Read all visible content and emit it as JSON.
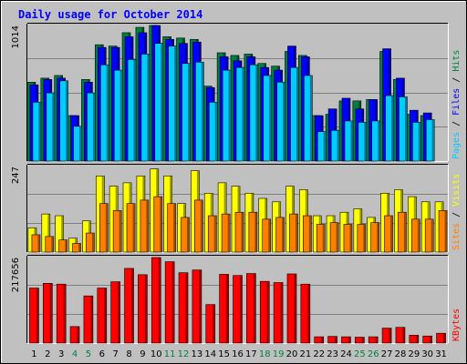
{
  "chart_data": {
    "type": "bar",
    "title": "Daily usage for October 2014",
    "x_labels": [
      "1",
      "2",
      "3",
      "4",
      "5",
      "6",
      "7",
      "8",
      "9",
      "10",
      "11",
      "12",
      "13",
      "14",
      "15",
      "16",
      "17",
      "18",
      "19",
      "20",
      "21",
      "22",
      "23",
      "24",
      "25",
      "26",
      "27",
      "28",
      "29",
      "30",
      "31"
    ],
    "weekend_days": [
      "4",
      "5",
      "11",
      "12",
      "18",
      "19",
      "25",
      "26"
    ],
    "panels": [
      {
        "name": "hits-files-pages",
        "y_tick_label": "1014",
        "ylim": [
          0,
          1014
        ],
        "grid": true,
        "legend": [
          {
            "text": "Pages",
            "color": "#00ccff"
          },
          {
            "text": " / ",
            "color": "#000000"
          },
          {
            "text": "Files",
            "color": "#0000ff"
          },
          {
            "text": " / ",
            "color": "#000000"
          },
          {
            "text": "Hits",
            "color": "#008040"
          }
        ],
        "series": [
          {
            "name": "Hits",
            "color": "#008040",
            "values": [
              590,
              620,
              640,
              340,
              610,
              870,
              860,
              960,
              1000,
              1014,
              930,
              920,
              910,
              560,
              810,
              790,
              800,
              730,
              710,
              820,
              790,
              340,
              350,
              450,
              450,
              460,
              820,
              610,
              350,
              340,
              0
            ]
          },
          {
            "name": "Files",
            "color": "#0000ff",
            "values": [
              570,
              610,
              620,
              340,
              590,
              850,
              850,
              930,
              960,
              1014,
              910,
              880,
              890,
              550,
              780,
              750,
              780,
              700,
              680,
              860,
              780,
              340,
              390,
              470,
              390,
              460,
              840,
              620,
              380,
              360,
              0
            ]
          },
          {
            "name": "Pages",
            "color": "#00ccff",
            "values": [
              440,
              510,
              600,
              260,
              510,
              720,
              680,
              760,
              800,
              880,
              860,
              730,
              740,
              440,
              680,
              700,
              720,
              640,
              590,
              700,
              640,
              220,
              230,
              300,
              290,
              300,
              490,
              480,
              290,
              310,
              0
            ]
          }
        ]
      },
      {
        "name": "visits-sites",
        "y_tick_label": "247",
        "ylim": [
          0,
          247
        ],
        "grid": true,
        "legend": [
          {
            "text": "Sites",
            "color": "#ff8000"
          },
          {
            "text": " / ",
            "color": "#000000"
          },
          {
            "text": "Visits",
            "color": "#ffff00"
          }
        ],
        "series": [
          {
            "name": "Visits",
            "color": "#ffff00",
            "values": [
              70,
              110,
              105,
              40,
              90,
              220,
              190,
              200,
              220,
              240,
              220,
              140,
              235,
              170,
              200,
              190,
              170,
              155,
              145,
              190,
              180,
              105,
              105,
              115,
              125,
              100,
              170,
              180,
              160,
              145,
              145
            ]
          },
          {
            "name": "Sites",
            "color": "#ff8000",
            "values": [
              50,
              45,
              35,
              25,
              55,
              140,
              120,
              140,
              150,
              160,
              140,
              100,
              150,
              105,
              110,
              115,
              115,
              95,
              100,
              110,
              105,
              80,
              85,
              80,
              80,
              85,
              105,
              115,
              95,
              95,
              120
            ]
          }
        ]
      },
      {
        "name": "kbytes",
        "y_tick_label": "217656",
        "ylim": [
          0,
          217656
        ],
        "grid": true,
        "legend": [
          {
            "text": "KBytes",
            "color": "#ff0000"
          }
        ],
        "series": [
          {
            "name": "KBytes",
            "color": "#ff0000",
            "values": [
              140000,
              152000,
              150000,
              42000,
              120000,
              140000,
              156000,
              190000,
              174000,
              217656,
              207000,
              179000,
              186000,
              98000,
              175000,
              172000,
              177000,
              157000,
              154000,
              176000,
              150000,
              16000,
              17000,
              16000,
              15000,
              16000,
              38000,
              40000,
              20000,
              18000,
              25000
            ]
          }
        ]
      }
    ]
  }
}
